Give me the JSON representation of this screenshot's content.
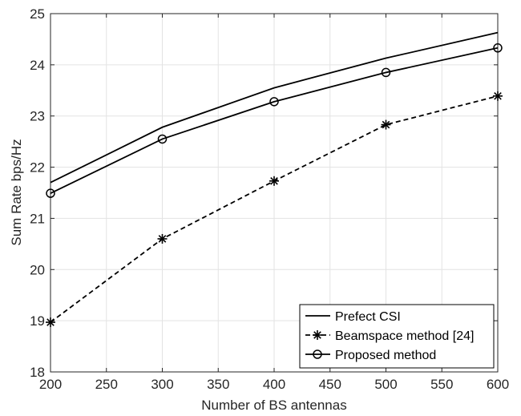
{
  "chart_data": {
    "type": "line",
    "xlabel": "Number of BS antennas",
    "ylabel": "Sum Rate bps/Hz",
    "xlim": [
      200,
      600
    ],
    "ylim": [
      18,
      25
    ],
    "xticks": [
      "200",
      "250",
      "300",
      "350",
      "400",
      "450",
      "500",
      "550",
      "600"
    ],
    "yticks": [
      "18",
      "19",
      "20",
      "21",
      "22",
      "23",
      "24",
      "25"
    ],
    "grid": true,
    "legend_position": "bottom-right",
    "x": [
      200,
      300,
      400,
      500,
      600
    ],
    "series": [
      {
        "name": "Prefect CSI",
        "values": [
          21.7,
          22.78,
          23.55,
          24.13,
          24.63
        ],
        "line": "solid",
        "marker": "none",
        "color": "#000000"
      },
      {
        "name": "Beamspace method [24]",
        "values": [
          18.97,
          20.6,
          21.73,
          22.83,
          23.39
        ],
        "line": "dashed",
        "marker": "asterisk",
        "color": "#000000"
      },
      {
        "name": "Proposed method",
        "values": [
          21.49,
          22.55,
          23.28,
          23.85,
          24.33
        ],
        "line": "solid",
        "marker": "circle",
        "color": "#000000"
      }
    ]
  }
}
